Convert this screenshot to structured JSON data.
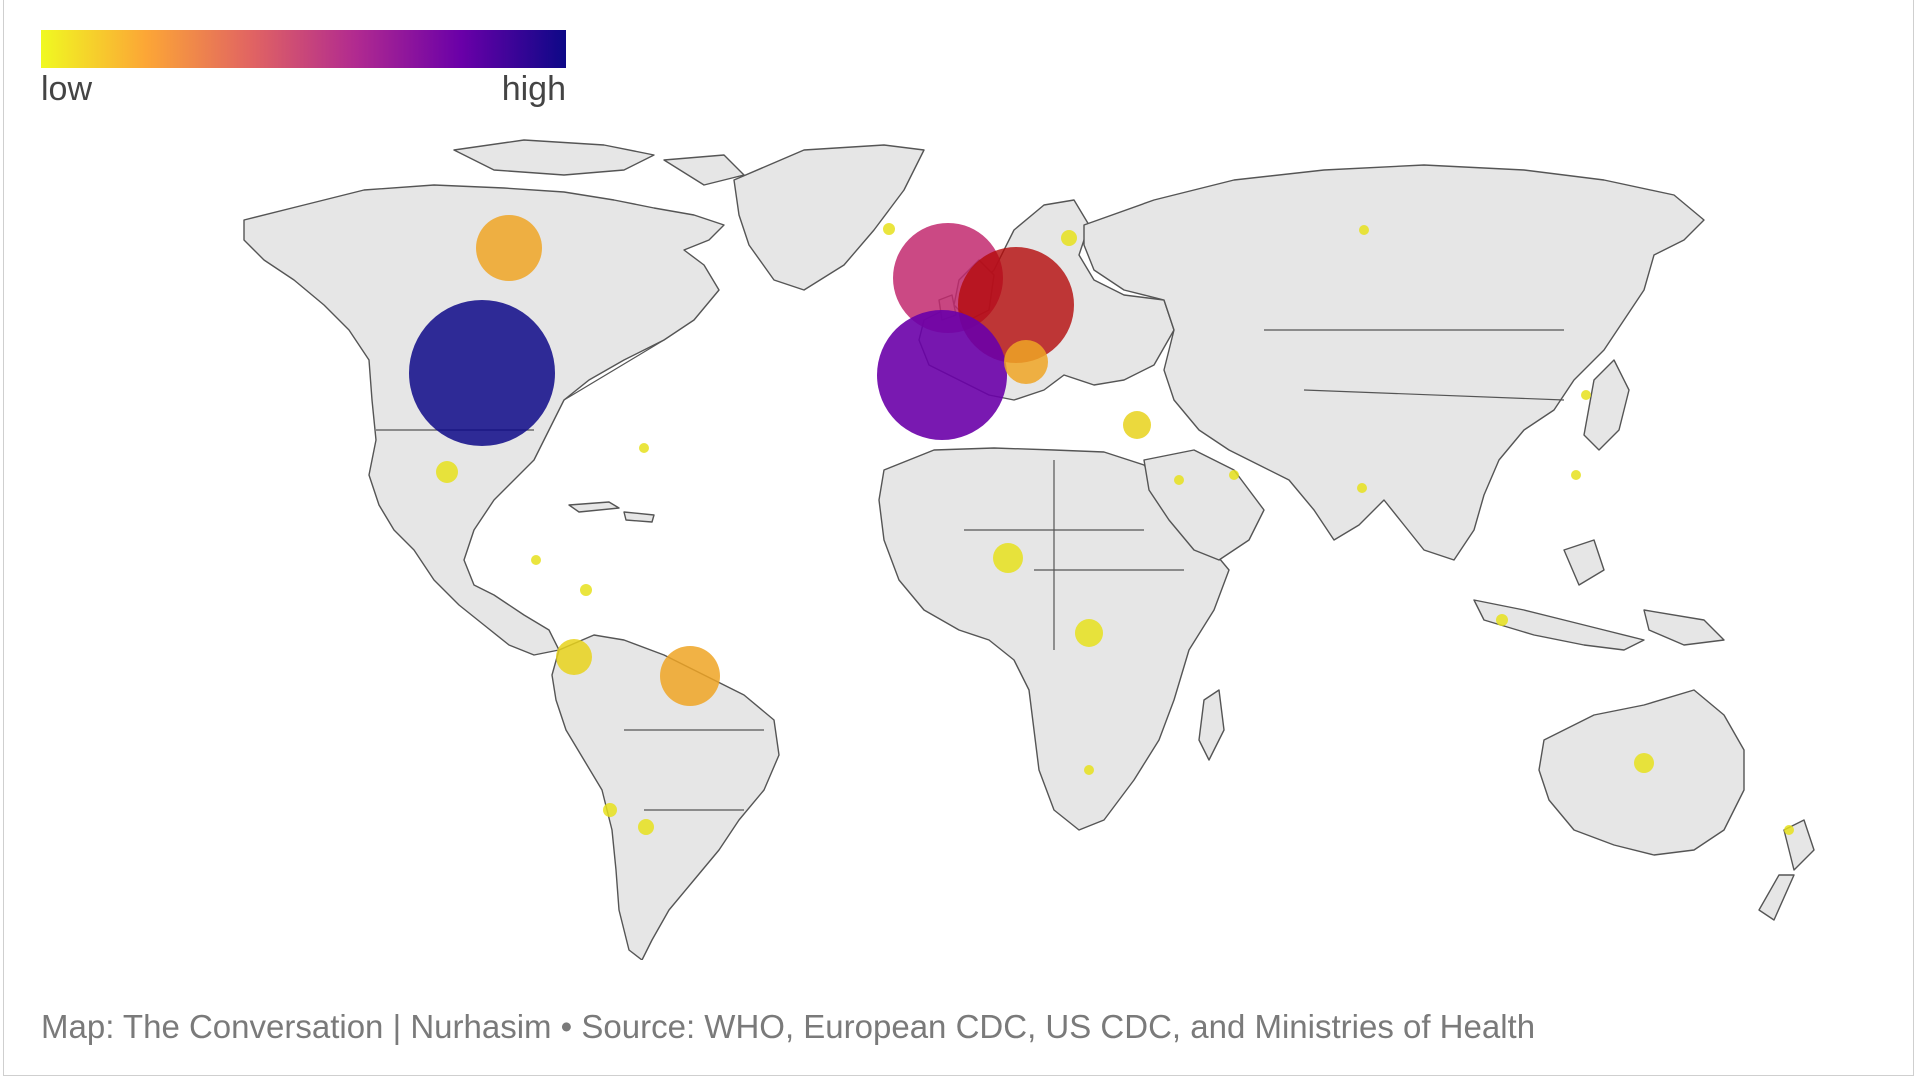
{
  "legend": {
    "low_label": "low",
    "high_label": "high",
    "gradient": [
      "#f0f921",
      "#fca636",
      "#e16462",
      "#b12a90",
      "#6a00a8",
      "#0d0887"
    ]
  },
  "credit": {
    "text": "Map: The Conversation | Nurhasim • Source: WHO, European CDC, US CDC, and Ministries of Health"
  },
  "colors": {
    "land": "#e6e6e6",
    "border": "#555555",
    "ocean": "#ffffff"
  },
  "map_bubbles": [
    {
      "name": "united-states",
      "level": 1.0,
      "size": "xl",
      "color": "#0d0887"
    },
    {
      "name": "canada",
      "level": 0.3,
      "size": "m",
      "color": "#eea424"
    },
    {
      "name": "spain",
      "level": 0.75,
      "size": "l",
      "color": "#6a00a8"
    },
    {
      "name": "france-uk",
      "level": 0.6,
      "size": "l",
      "color": "#c2296f"
    },
    {
      "name": "italy-germany",
      "level": 0.65,
      "size": "l",
      "color": "#b40a0a"
    },
    {
      "name": "brazil",
      "level": 0.3,
      "size": "m",
      "color": "#eea424"
    },
    {
      "name": "peru",
      "level": 0.15,
      "size": "s",
      "color": "#e8d21b"
    },
    {
      "name": "mexico",
      "level": 0.1,
      "size": "xs",
      "color": "#e6e01c"
    },
    {
      "name": "nigeria",
      "level": 0.1,
      "size": "s",
      "color": "#e6e01c"
    },
    {
      "name": "dr-congo",
      "level": 0.1,
      "size": "s",
      "color": "#e6e01c"
    },
    {
      "name": "australia",
      "level": 0.1,
      "size": "xs",
      "color": "#e6e01c"
    },
    {
      "name": "israel",
      "level": 0.15,
      "size": "s",
      "color": "#e8d21b"
    }
  ]
}
